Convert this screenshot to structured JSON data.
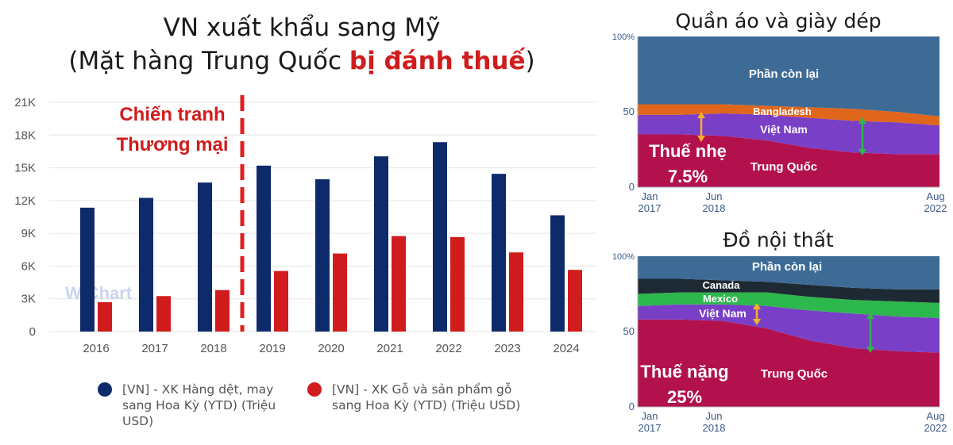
{
  "left_chart": {
    "title_line1": "VN xuất khẩu sang Mỹ",
    "title_line2_pre": "(Mặt hàng Trung Quốc ",
    "title_line2_highlight": "bị đánh thuế",
    "title_line2_post": ")",
    "annotation_line1": "Chiến tranh",
    "annotation_line2": "Thương mại",
    "watermark": "WiChart",
    "legend": [
      {
        "label": "[VN] - XK Hàng dệt, may sang Hoa Kỳ (YTD) (Triệu USD)",
        "color": "#0d2b6b"
      },
      {
        "label": "[VN] - XK Gỗ và sản phẩm gỗ sang Hoa Kỳ (YTD) (Triệu USD)",
        "color": "#d01c1c"
      }
    ]
  },
  "chart_data": [
    {
      "type": "bar",
      "title": "VN xuất khẩu sang Mỹ (Mặt hàng Trung Quốc bị đánh thuế)",
      "categories": [
        "2016",
        "2017",
        "2018",
        "2019",
        "2020",
        "2021",
        "2022",
        "2023",
        "2024"
      ],
      "series": [
        {
          "name": "[VN] - XK Hàng dệt, may sang Hoa Kỳ (YTD) (Triệu USD)",
          "color": "#0d2b6b",
          "values": [
            11350,
            12250,
            13650,
            15200,
            13950,
            16050,
            17350,
            14450,
            10650
          ]
        },
        {
          "name": "[VN] - XK Gỗ và sản phẩm gỗ sang Hoa Kỳ (YTD) (Triệu USD)",
          "color": "#d01c1c",
          "values": [
            2700,
            3250,
            3800,
            5550,
            7150,
            8750,
            8650,
            7250,
            5650
          ]
        }
      ],
      "ylim": [
        0,
        21000
      ],
      "yticks": [
        0,
        3000,
        6000,
        9000,
        12000,
        15000,
        18000,
        21000
      ],
      "yticklabels": [
        "0",
        "3K",
        "6K",
        "9K",
        "12K",
        "15K",
        "18K",
        "21K"
      ],
      "grid": true,
      "annotation": {
        "text": "Chiến tranh Thương mại",
        "between": [
          "2018",
          "2019"
        ],
        "color": "#d01c1c"
      },
      "legend_position": "bottom"
    },
    {
      "type": "area",
      "title": "Quần áo và giày dép",
      "x": [
        "Jan 2017",
        "Jun 2018",
        "Aug 2022"
      ],
      "xticklabels": [
        [
          "Jan",
          "2017"
        ],
        [
          "Jun",
          "2018"
        ],
        [
          "Aug",
          "2022"
        ]
      ],
      "ylim": [
        0,
        100
      ],
      "yticklabels": [
        "100%",
        "50",
        "0"
      ],
      "stack_order": [
        "Trung Quốc",
        "Việt Nam",
        "Bangladesh",
        "Phần còn lại"
      ],
      "boundaries": {
        "Trung Quốc": [
          35,
          35,
          34,
          31,
          26,
          23,
          22,
          22
        ],
        "Việt Nam": [
          48,
          48,
          49,
          48,
          46,
          44,
          43,
          41
        ],
        "Bangladesh": [
          55,
          55,
          55,
          54,
          53,
          52,
          50,
          47
        ]
      },
      "colors": {
        "Trung Quốc": "#b3104e",
        "Việt Nam": "#7a3fc7",
        "Bangladesh": "#e0661b",
        "Phần còn lại": "#3d6b96"
      },
      "area_labels": [
        "Phần còn lại",
        "Bangladesh",
        "Việt Nam",
        "Trung Quốc"
      ],
      "tariff_label_line1": "Thuế nhẹ",
      "tariff_label_line2": "7.5%"
    },
    {
      "type": "area",
      "title": "Đồ nội thất",
      "x": [
        "Jan 2017",
        "Jun 2018",
        "Aug 2022"
      ],
      "xticklabels": [
        [
          "Jan",
          "2017"
        ],
        [
          "Jun",
          "2018"
        ],
        [
          "Aug",
          "2022"
        ]
      ],
      "ylim": [
        0,
        100
      ],
      "yticklabels": [
        "100%",
        "50",
        "0"
      ],
      "stack_order": [
        "Trung Quốc",
        "Việt Nam",
        "Mexico",
        "Canada",
        "Phần còn lại"
      ],
      "boundaries": {
        "Trung Quốc": [
          58,
          58,
          57,
          52,
          44,
          39,
          37,
          36
        ],
        "Việt Nam": [
          67,
          68,
          68,
          67,
          64,
          62,
          60,
          59
        ],
        "Mexico": [
          75,
          76,
          76,
          76,
          73,
          71,
          70,
          69
        ],
        "Canada": [
          85,
          85,
          84,
          83,
          81,
          79,
          78,
          78
        ]
      },
      "colors": {
        "Trung Quốc": "#b3104e",
        "Việt Nam": "#7a3fc7",
        "Mexico": "#2db84d",
        "Canada": "#1e2a33",
        "Phần còn lại": "#3d6b96"
      },
      "area_labels": [
        "Phần còn lại",
        "Canada",
        "Mexico",
        "Việt Nam",
        "Trung Quốc"
      ],
      "tariff_label_line1": "Thuế nặng",
      "tariff_label_line2": "25%"
    }
  ]
}
